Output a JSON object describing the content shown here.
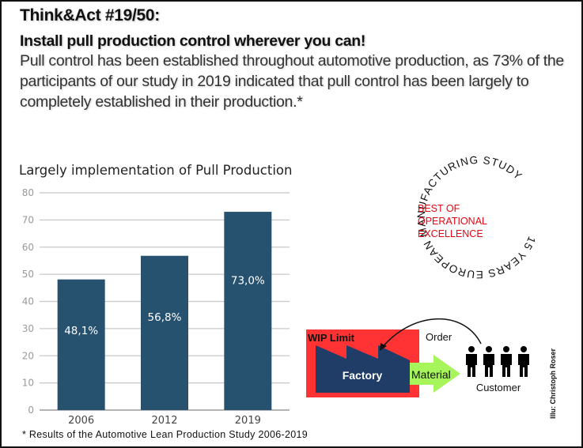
{
  "header": {
    "title": "Think&Act #19/50:",
    "subtitle": "Install pull production control wherever you can!",
    "body": "Pull control has been established throughout automotive production, as 73% of the participants of our study in 2019 indicated that pull control has been largely to completely established in their production.*"
  },
  "chart_data": {
    "type": "bar",
    "title": "Largely implementation of Pull Production",
    "categories": [
      "2006",
      "2012",
      "2019"
    ],
    "values": [
      48.1,
      56.8,
      73.0
    ],
    "data_labels": [
      "48,1%",
      "56,8%",
      "73,0%"
    ],
    "xlabel": "",
    "ylabel": "",
    "ylim": [
      0,
      80
    ],
    "yticks": [
      0,
      10,
      20,
      30,
      40,
      50,
      60,
      70,
      80
    ],
    "grid": true,
    "legend": "none",
    "bar_color": "#27526F"
  },
  "footnote": "* Results of the Automotive Lean Production Study 2006-2019",
  "badge": {
    "ring_text": "15 YEARS EUROPEAN MANUFACTURING STUDY",
    "lines": [
      "BEST OF",
      "OPERATIONAL",
      "EXCELLENCE"
    ],
    "accent_color": "#E30613"
  },
  "diagram": {
    "wip_label": "WIP Limit",
    "factory_label": "Factory",
    "material_label": "Material",
    "order_label": "Order",
    "customer_label": "Customer",
    "customer_count": 4,
    "colors": {
      "wip": "#FF3333",
      "factory": "#1F3D66",
      "material": "#A6F55A"
    }
  },
  "credit": "Illu: Christoph Roser"
}
